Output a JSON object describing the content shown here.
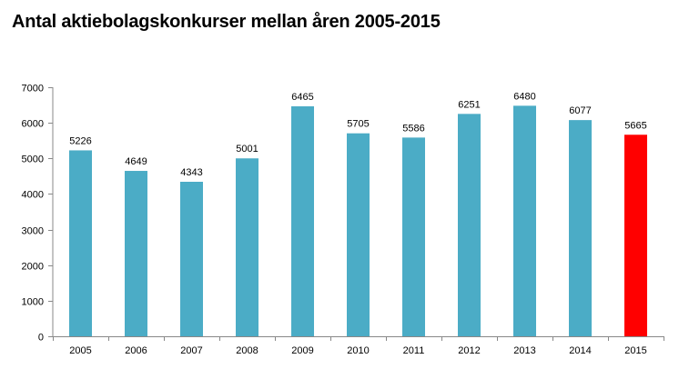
{
  "chart_data": {
    "type": "bar",
    "title": "Antal aktiebolagskonkurser mellan åren 2005-2015",
    "xlabel": "",
    "ylabel": "",
    "categories": [
      "2005",
      "2006",
      "2007",
      "2008",
      "2009",
      "2010",
      "2011",
      "2012",
      "2013",
      "2014",
      "2015"
    ],
    "values": [
      5226,
      4649,
      4343,
      5001,
      6465,
      5705,
      5586,
      6251,
      6480,
      6077,
      5665
    ],
    "data_labels": [
      "5226",
      "4649",
      "4343",
      "5001",
      "6465",
      "5705",
      "5586",
      "6251",
      "6480",
      "6077",
      "5665"
    ],
    "ylim": [
      0,
      7000
    ],
    "yticks": [
      0,
      1000,
      2000,
      3000,
      4000,
      5000,
      6000,
      7000
    ],
    "ytick_labels": [
      "0",
      "1000",
      "2000",
      "3000",
      "4000",
      "5000",
      "6000",
      "7000"
    ],
    "grid": false,
    "legend": "none",
    "colors": {
      "bar": "#4BACC6",
      "highlight_bar": "#FF0000",
      "highlight_category": "2015",
      "axis": "#888888"
    }
  }
}
